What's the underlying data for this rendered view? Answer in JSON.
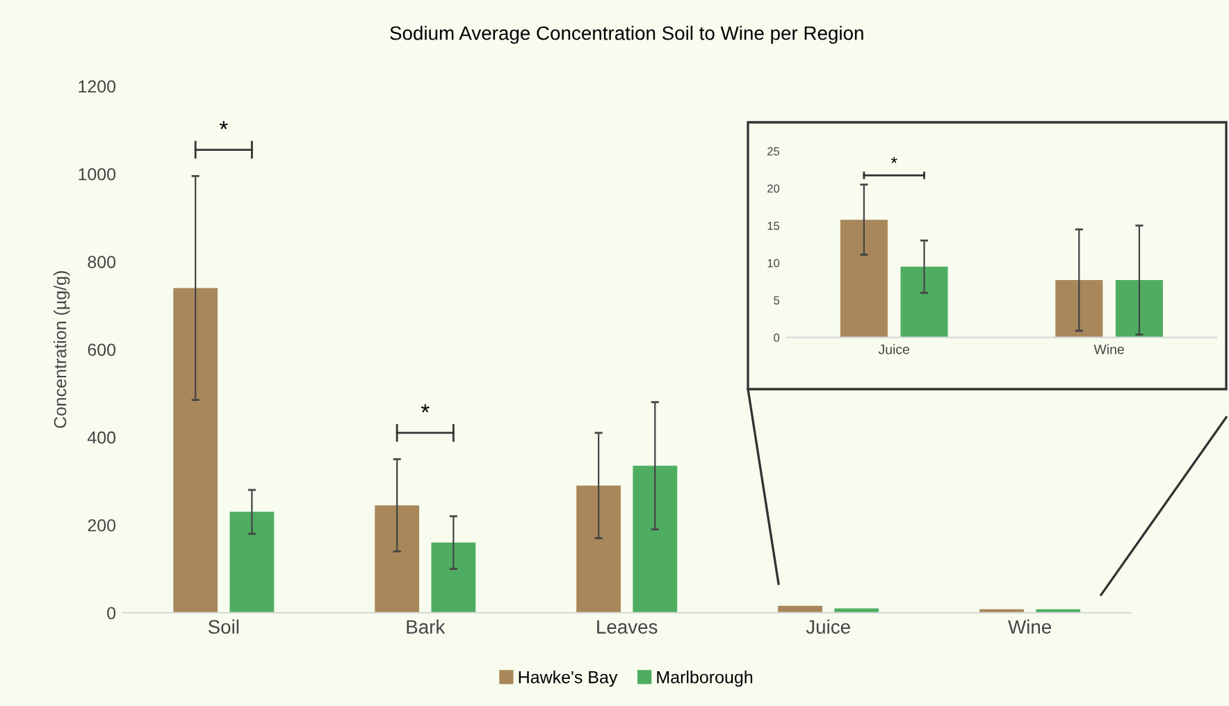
{
  "chart_data": [
    {
      "type": "bar",
      "title": "Sodium Average Concentration Soil to Wine per Region",
      "ylabel": "Concentration (µg/g)",
      "categories": [
        "Soil",
        "Bark",
        "Leaves",
        "Juice",
        "Wine"
      ],
      "series": [
        {
          "name": "Hawke's Bay",
          "color": "#a8875a",
          "values": [
            740,
            245,
            290,
            16,
            8
          ],
          "errors": [
            255,
            105,
            120,
            null,
            null
          ]
        },
        {
          "name": "Marlborough",
          "color": "#4fad62",
          "values": [
            230,
            160,
            335,
            10,
            8
          ],
          "errors": [
            50,
            60,
            145,
            null,
            null
          ]
        }
      ],
      "ylim": [
        0,
        1200
      ],
      "yticks": [
        0,
        200,
        400,
        600,
        800,
        1000,
        1200
      ],
      "grid": false,
      "legend": "bottom",
      "annotations": [
        "*",
        "*"
      ]
    },
    {
      "type": "bar",
      "categories": [
        "Juice",
        "Wine"
      ],
      "series": [
        {
          "color": "#a8875a",
          "values": [
            15.8,
            7.7
          ],
          "errors": [
            4.7,
            6.8
          ]
        },
        {
          "color": "#4fad62",
          "values": [
            9.5,
            7.7
          ],
          "errors": [
            3.5,
            7.3
          ]
        }
      ],
      "ylim": [
        0,
        25
      ],
      "yticks": [
        0,
        5,
        10,
        15,
        20,
        25
      ],
      "grid": false,
      "annotations": [
        "*"
      ]
    }
  ]
}
